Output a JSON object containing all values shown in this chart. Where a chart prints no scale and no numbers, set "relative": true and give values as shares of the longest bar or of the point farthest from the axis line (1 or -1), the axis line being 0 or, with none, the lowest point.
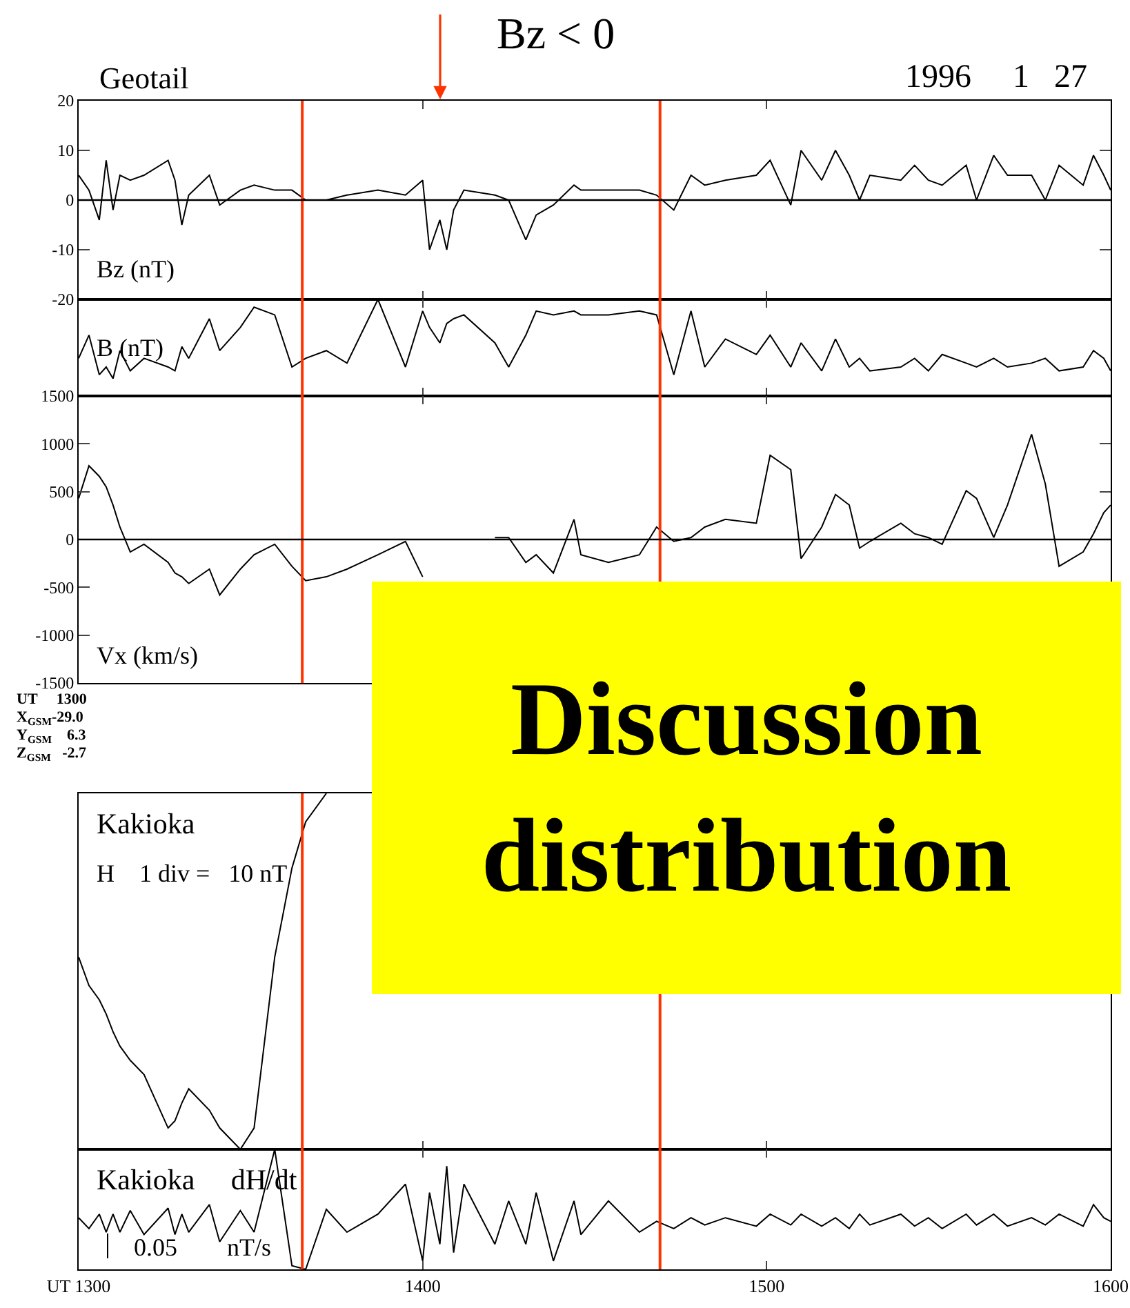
{
  "chart_data": [
    {
      "type": "line",
      "title": "Geotail",
      "ylabel": "Bz (nT)",
      "annotations": [
        "Bz < 0",
        "1996     1   27"
      ],
      "x": [
        1300,
        1303,
        1306,
        1308,
        1310,
        1312,
        1315,
        1319,
        1326,
        1328,
        1330,
        1332,
        1338,
        1341,
        1347,
        1351,
        1357,
        1362,
        1366,
        1372,
        1378,
        1387,
        1395,
        1400,
        1402,
        1405,
        1407,
        1409,
        1412,
        1421,
        1425,
        1430,
        1433,
        1438,
        1444,
        1446,
        1454,
        1463,
        1468,
        1473,
        1478,
        1482,
        1488,
        1497,
        1501,
        1507,
        1510,
        1516,
        1520,
        1524,
        1527,
        1530,
        1539,
        1543,
        1547,
        1551,
        1558,
        1561,
        1566,
        1570,
        1577,
        1581,
        1585,
        1592,
        1595,
        1598,
        1600
      ],
      "series": [
        {
          "color": "#000000",
          "values": [
            5,
            2,
            -4,
            8,
            -2,
            5,
            4,
            5,
            8,
            4,
            -5,
            1,
            5,
            -1,
            2,
            3,
            2,
            2,
            0,
            0,
            1,
            2,
            1,
            4,
            -10,
            -4,
            -10,
            -2,
            2,
            1,
            0,
            -8,
            -3,
            -1,
            3,
            2,
            2,
            2,
            1,
            -2,
            5,
            3,
            4,
            5,
            8,
            -1,
            10,
            4,
            10,
            5,
            0,
            5,
            4,
            7,
            4,
            3,
            7,
            0,
            9,
            5,
            5,
            0,
            7,
            3,
            9,
            5,
            2
          ]
        }
      ],
      "xlim": [
        1300,
        1600
      ],
      "ylim": [
        -20,
        20
      ],
      "yticks": [
        -20,
        -10,
        0,
        10,
        20
      ],
      "tick_labels": "y",
      "ref_lines": [
        {
          "axis": "x",
          "value": 1365,
          "color": "#ff3300"
        },
        {
          "axis": "x",
          "value": 1469,
          "color": "#ff3300"
        },
        {
          "axis": "y",
          "value": 0,
          "color": "#000000"
        }
      ]
    },
    {
      "type": "line",
      "relative": true,
      "ylabel": "B (nT)",
      "x": [
        1300,
        1303,
        1306,
        1308,
        1310,
        1312,
        1315,
        1319,
        1326,
        1328,
        1330,
        1332,
        1338,
        1341,
        1347,
        1351,
        1357,
        1362,
        1366,
        1372,
        1378,
        1387,
        1395,
        1400,
        1402,
        1405,
        1407,
        1409,
        1412,
        1421,
        1425,
        1430,
        1433,
        1438,
        1444,
        1446,
        1454,
        1463,
        1468,
        1473,
        1478,
        1482,
        1488,
        1497,
        1501,
        1507,
        1510,
        1516,
        1520,
        1524,
        1527,
        1530,
        1539,
        1543,
        1547,
        1551,
        1558,
        1561,
        1566,
        1570,
        1577,
        1581,
        1585,
        1592,
        1595,
        1598,
        1600
      ],
      "series": [
        {
          "color": "#000000",
          "values": [
            0.39,
            0.63,
            0.22,
            0.3,
            0.18,
            0.47,
            0.26,
            0.39,
            0.3,
            0.26,
            0.51,
            0.39,
            0.8,
            0.47,
            0.71,
            0.92,
            0.84,
            0.3,
            0.39,
            0.47,
            0.34,
            1,
            0.3,
            0.88,
            0.71,
            0.55,
            0.75,
            0.8,
            0.84,
            0.55,
            0.3,
            0.63,
            0.88,
            0.84,
            0.88,
            0.84,
            0.84,
            0.88,
            0.84,
            0.22,
            0.88,
            0.3,
            0.59,
            0.43,
            0.63,
            0.3,
            0.55,
            0.26,
            0.59,
            0.3,
            0.39,
            0.26,
            0.3,
            0.39,
            0.26,
            0.43,
            0.34,
            0.3,
            0.39,
            0.3,
            0.34,
            0.39,
            0.26,
            0.3,
            0.47,
            0.39,
            0.26
          ]
        }
      ],
      "xlim": [
        1300,
        1600
      ],
      "tick_labels": false,
      "ref_lines": [
        {
          "axis": "x",
          "value": 1365,
          "color": "#ff3300"
        },
        {
          "axis": "x",
          "value": 1469,
          "color": "#ff3300"
        }
      ]
    },
    {
      "type": "line",
      "ylabel": "Vx (km/s)",
      "annotations": [
        "UT     1300",
        "X$_{GSM}$-29.0",
        "Y$_{GSM}$    6.3",
        "Z$_{GSM}$   -2.7"
      ],
      "x": [
        1300,
        1303,
        1306,
        1308,
        1310,
        1312,
        1315,
        1319,
        1326,
        1328,
        1330,
        1332,
        1338,
        1341,
        1347,
        1351,
        1357,
        1362,
        1366,
        1372,
        1378,
        1387,
        1395,
        1400,
        1402,
        1405,
        1407,
        1409,
        1412,
        1421,
        1425,
        1430,
        1433,
        1438,
        1444,
        1446,
        1454,
        1463,
        1468,
        1473,
        1478,
        1482,
        1488,
        1497,
        1501,
        1507,
        1510,
        1516,
        1520,
        1524,
        1527,
        1530,
        1539,
        1543,
        1547,
        1551,
        1558,
        1561,
        1566,
        1570,
        1577,
        1581,
        1585,
        1592,
        1595,
        1598,
        1600
      ],
      "series": [
        {
          "color": "#000000",
          "values": [
            430,
            770,
            660,
            550,
            360,
            130,
            -130,
            -50,
            -240,
            -350,
            -390,
            -460,
            -310,
            -580,
            -310,
            -160,
            -50,
            -280,
            -430,
            -390,
            -310,
            -160,
            -20,
            -390,
            null,
            null,
            null,
            null,
            null,
            20,
            20,
            -240,
            -160,
            -350,
            210,
            -160,
            -240,
            -160,
            130,
            -20,
            20,
            130,
            210,
            170,
            880,
            730,
            -200,
            130,
            470,
            360,
            -90,
            -20,
            170,
            60,
            20,
            -50,
            510,
            430,
            20,
            360,
            1100,
            580,
            -280,
            -130,
            60,
            280,
            360
          ]
        }
      ],
      "xlim": [
        1300,
        1600
      ],
      "ylim": [
        -1500,
        1500
      ],
      "yticks": [
        -1500,
        -1000,
        -500,
        0,
        500,
        1000,
        1500
      ],
      "tick_labels": "y",
      "ref_lines": [
        {
          "axis": "x",
          "value": 1365,
          "color": "#ff3300"
        },
        {
          "axis": "x",
          "value": 1469,
          "color": "#ff3300"
        },
        {
          "axis": "y",
          "value": 0,
          "color": "#000000"
        }
      ]
    },
    {
      "type": "line",
      "relative": true,
      "title": "Kakioka",
      "annotations": [
        "H    1 div =   10 nT",
        "Discussion\ndistribution"
      ],
      "x": [
        1300,
        1303,
        1306,
        1308,
        1310,
        1312,
        1315,
        1319,
        1326,
        1328,
        1330,
        1332,
        1338,
        1341,
        1347,
        1351,
        1357,
        1362,
        1366,
        1372
      ],
      "series": [
        {
          "color": "#000000",
          "values": [
            0.54,
            0.46,
            0.42,
            0.38,
            0.33,
            0.29,
            0.25,
            0.21,
            0.06,
            0.08,
            0.13,
            0.17,
            0.11,
            0.06,
            0,
            0.06,
            0.54,
            0.79,
            0.92,
            1
          ]
        }
      ],
      "xlim": [
        1300,
        1600
      ],
      "tick_labels": false,
      "ref_lines": [
        {
          "axis": "x",
          "value": 1365,
          "color": "#ff3300"
        },
        {
          "axis": "x",
          "value": 1469,
          "color": "#ff3300"
        }
      ]
    },
    {
      "type": "line",
      "relative": true,
      "title": "Kakioka     dH/dt",
      "annotations": [
        "0.05        nT/s"
      ],
      "x": [
        1300,
        1303,
        1306,
        1308,
        1310,
        1312,
        1315,
        1319,
        1326,
        1328,
        1330,
        1332,
        1338,
        1341,
        1347,
        1351,
        1357,
        1362,
        1366,
        1372,
        1378,
        1387,
        1395,
        1400,
        1402,
        1405,
        1407,
        1409,
        1412,
        1421,
        1425,
        1430,
        1433,
        1438,
        1444,
        1446,
        1454,
        1463,
        1468,
        1473,
        1478,
        1482,
        1488,
        1497,
        1501,
        1507,
        1510,
        1516,
        1520,
        1524,
        1527,
        1530,
        1539,
        1543,
        1547,
        1551,
        1558,
        1561,
        1566,
        1570,
        1577,
        1581,
        1585,
        1592,
        1595,
        1598,
        1600
      ],
      "series": [
        {
          "color": "#000000",
          "values": [
            0.43,
            0.34,
            0.46,
            0.31,
            0.46,
            0.31,
            0.49,
            0.29,
            0.51,
            0.29,
            0.46,
            0.31,
            0.54,
            0.23,
            0.49,
            0.31,
            1,
            0.03,
            0,
            0.5,
            0.31,
            0.46,
            0.71,
            0.07,
            0.64,
            0.21,
            0.86,
            0.14,
            0.71,
            0.21,
            0.57,
            0.21,
            0.64,
            0.07,
            0.57,
            0.29,
            0.57,
            0.31,
            0.4,
            0.34,
            0.43,
            0.37,
            0.43,
            0.36,
            0.46,
            0.37,
            0.46,
            0.36,
            0.43,
            0.34,
            0.46,
            0.37,
            0.46,
            0.36,
            0.43,
            0.34,
            0.46,
            0.37,
            0.46,
            0.36,
            0.43,
            0.37,
            0.46,
            0.36,
            0.54,
            0.43,
            0.4
          ]
        }
      ],
      "xlim": [
        1300,
        1600
      ],
      "xticks": [
        {
          "value": 1300,
          "label": "UT 1300"
        },
        1400,
        1500,
        1600
      ],
      "tick_labels": "x",
      "ref_lines": [
        {
          "axis": "x",
          "value": 1365,
          "color": "#ff3300"
        },
        {
          "axis": "x",
          "value": 1469,
          "color": "#ff3300"
        }
      ]
    }
  ]
}
